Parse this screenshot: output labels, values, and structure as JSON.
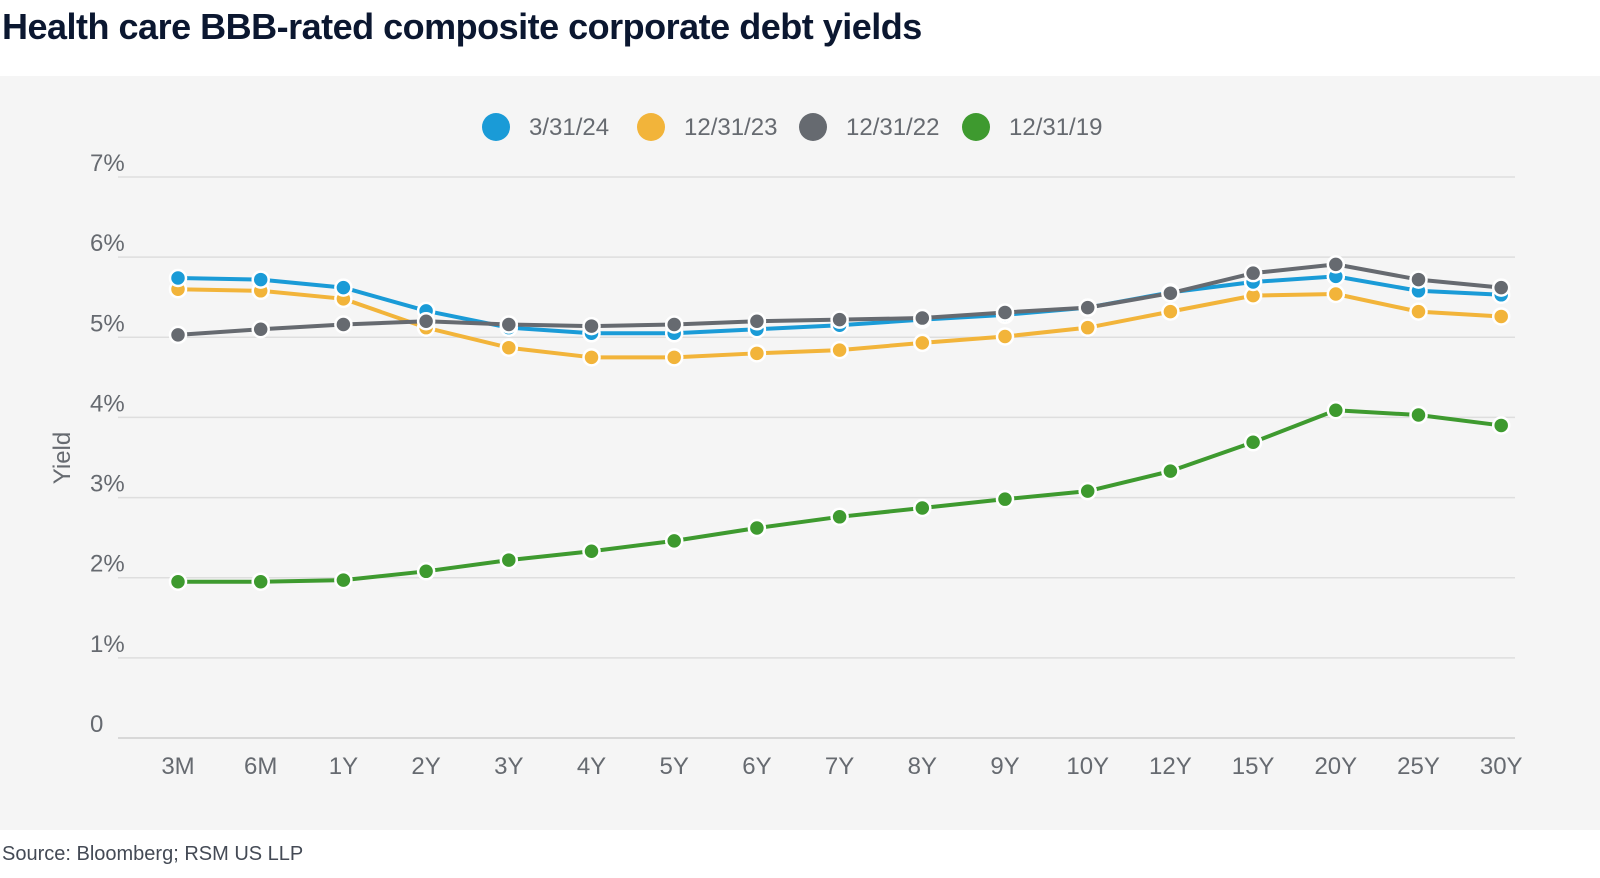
{
  "title": "Health care BBB-rated composite corporate debt yields",
  "source": "Source: Bloomberg; RSM US LLP",
  "chart_data": {
    "type": "line",
    "title": "Health care BBB-rated composite corporate debt yields",
    "xlabel": "",
    "ylabel": "Yield",
    "ylim": [
      0,
      7
    ],
    "yticks": [
      "0",
      "1%",
      "2%",
      "3%",
      "4%",
      "5%",
      "6%",
      "7%"
    ],
    "grid": true,
    "legend": "top-center",
    "categories": [
      "3M",
      "6M",
      "1Y",
      "2Y",
      "3Y",
      "4Y",
      "5Y",
      "6Y",
      "7Y",
      "8Y",
      "9Y",
      "10Y",
      "12Y",
      "15Y",
      "20Y",
      "25Y",
      "30Y"
    ],
    "series": [
      {
        "name": "12/31/19",
        "color": "#3e9a2f",
        "values": [
          1.95,
          1.95,
          1.97,
          2.08,
          2.22,
          2.33,
          2.46,
          2.62,
          2.76,
          2.87,
          2.98,
          3.08,
          3.33,
          3.69,
          4.09,
          4.03,
          3.9
        ]
      },
      {
        "name": "12/31/23",
        "color": "#f2b43a",
        "values": [
          5.6,
          5.58,
          5.48,
          5.12,
          4.87,
          4.75,
          4.75,
          4.8,
          4.84,
          4.93,
          5.01,
          5.12,
          5.32,
          5.52,
          5.54,
          5.32,
          5.26
        ]
      },
      {
        "name": "3/31/24",
        "color": "#1a9bd7",
        "values": [
          5.74,
          5.72,
          5.62,
          5.33,
          5.12,
          5.05,
          5.05,
          5.1,
          5.15,
          5.22,
          5.28,
          5.37,
          5.56,
          5.69,
          5.76,
          5.58,
          5.53
        ]
      },
      {
        "name": "12/31/22",
        "color": "#666a70",
        "values": [
          5.03,
          5.1,
          5.16,
          5.2,
          5.16,
          5.14,
          5.16,
          5.2,
          5.22,
          5.24,
          5.31,
          5.37,
          5.55,
          5.8,
          5.91,
          5.72,
          5.62
        ]
      }
    ],
    "legend_order": [
      "3/31/24",
      "12/31/23",
      "12/31/22",
      "12/31/19"
    ]
  }
}
